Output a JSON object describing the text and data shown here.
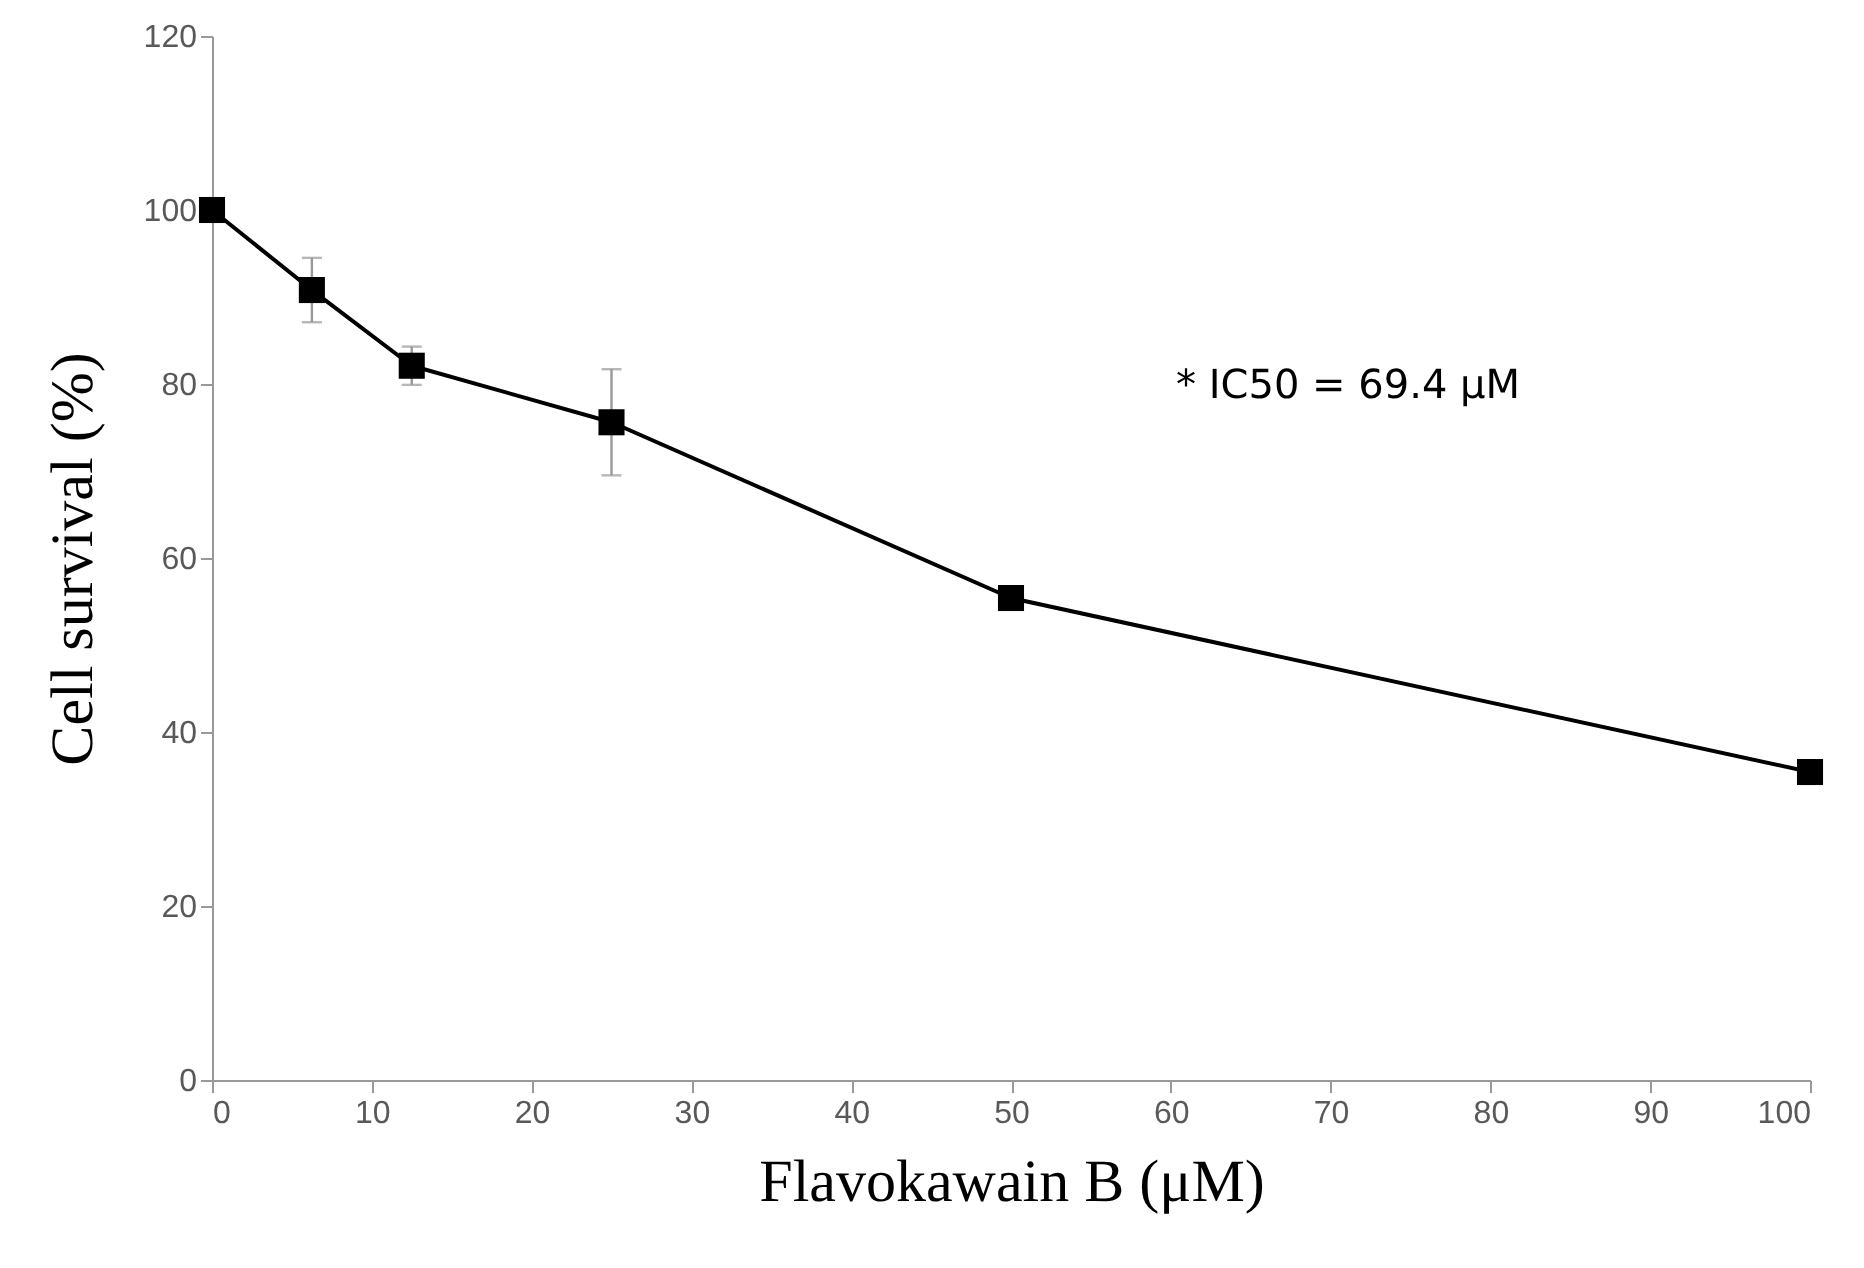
{
  "chart_data": {
    "type": "line",
    "xlabel": "Flavokawain B (μM)",
    "ylabel": "Cell survival (%)",
    "x": [
      0,
      6.25,
      12.5,
      25,
      50,
      100
    ],
    "series": [
      {
        "color": "#000000",
        "values": [
          100,
          90.8,
          82.1,
          75.6,
          55.4,
          35.4
        ],
        "errors": [
          null,
          3.7,
          2.2,
          6.1,
          1.2,
          1.1
        ]
      }
    ],
    "xlim": [
      0,
      100
    ],
    "xticks": [
      0,
      10,
      20,
      30,
      40,
      50,
      60,
      70,
      80,
      90,
      100
    ],
    "ylim": [
      0,
      120
    ],
    "yticks": [
      0,
      20,
      40,
      60,
      80,
      100,
      120
    ],
    "grid": false,
    "marker": "square",
    "line_style": "solid",
    "annotations": [
      "* IC50 = 69.4 μM"
    ]
  }
}
